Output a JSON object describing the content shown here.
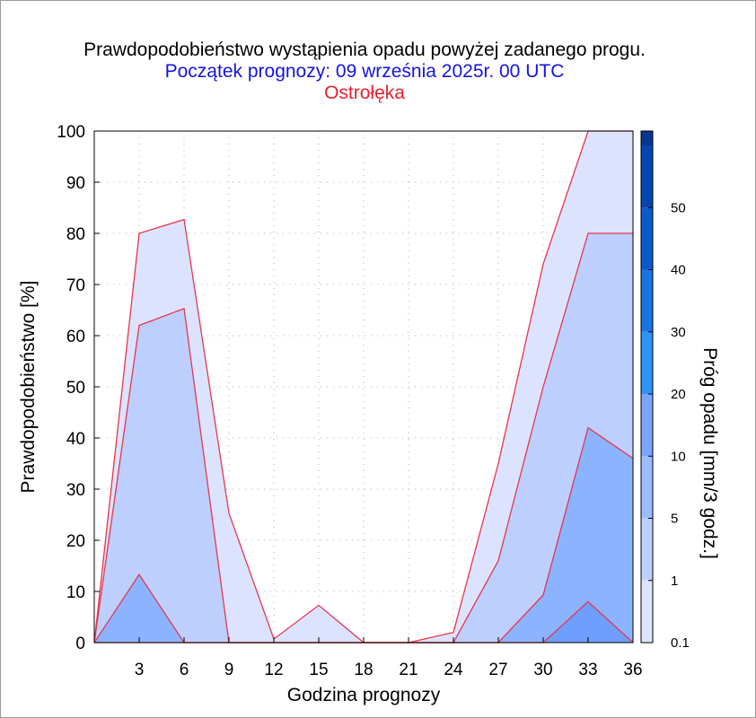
{
  "chart_data": {
    "type": "area",
    "title": "Prawdopodobieństwo wystąpienia opadu powyżej zadanego progu.",
    "subtitle": "Początek prognozy: 09 września 2025r. 00 UTC",
    "location": "Ostrołęka",
    "xlabel": "Godzina prognozy",
    "ylabel": "Prawdopodobieństwo [%]",
    "colorbar_label": "Próg opadu [mm/3 godz.]",
    "x": [
      0,
      3,
      6,
      9,
      12,
      15,
      18,
      21,
      24,
      27,
      30,
      33,
      36
    ],
    "x_ticks": [
      "3",
      "6",
      "9",
      "12",
      "15",
      "18",
      "21",
      "24",
      "27",
      "30",
      "33",
      "36"
    ],
    "xlim": [
      0,
      36
    ],
    "y_ticks": [
      "0",
      "10",
      "20",
      "30",
      "40",
      "50",
      "60",
      "70",
      "80",
      "90",
      "100"
    ],
    "ylim": [
      0,
      100
    ],
    "grid": true,
    "series": [
      {
        "threshold": "0.1",
        "color": "#dce3ff",
        "values": [
          0,
          80,
          82.7,
          25.3,
          0.7,
          7.3,
          0,
          0,
          2,
          35,
          74,
          100,
          100
        ]
      },
      {
        "threshold": "1",
        "color": "#bccfff",
        "values": [
          0,
          62,
          65.3,
          0,
          0,
          0,
          0,
          0,
          0,
          16,
          50,
          80,
          80
        ]
      },
      {
        "threshold": "5",
        "color": "#8cb3ff",
        "values": [
          0,
          13.3,
          0,
          0,
          0,
          0,
          0,
          0,
          0,
          0,
          9.3,
          42,
          36
        ]
      },
      {
        "threshold": "10",
        "color": "#6e9eff",
        "values": [
          0,
          0,
          0,
          0,
          0,
          0,
          0,
          0,
          0,
          0,
          0,
          8,
          0
        ]
      }
    ],
    "colorbar": {
      "levels": [
        "0.1",
        "1",
        "5",
        "10",
        "20",
        "30",
        "40",
        "50"
      ],
      "colors": [
        "#dde4ff",
        "#bdd0ff",
        "#9bbcff",
        "#7aa5ff",
        "#2f94f5",
        "#1874e2",
        "#0b5acc",
        "#0646b3"
      ],
      "top_color": "#06378f"
    },
    "colors": {
      "line": "#e8364a",
      "grid": "#b0b0b0",
      "title": "#000000",
      "subtitle": "#1414e0",
      "location": "#e8202e"
    }
  }
}
